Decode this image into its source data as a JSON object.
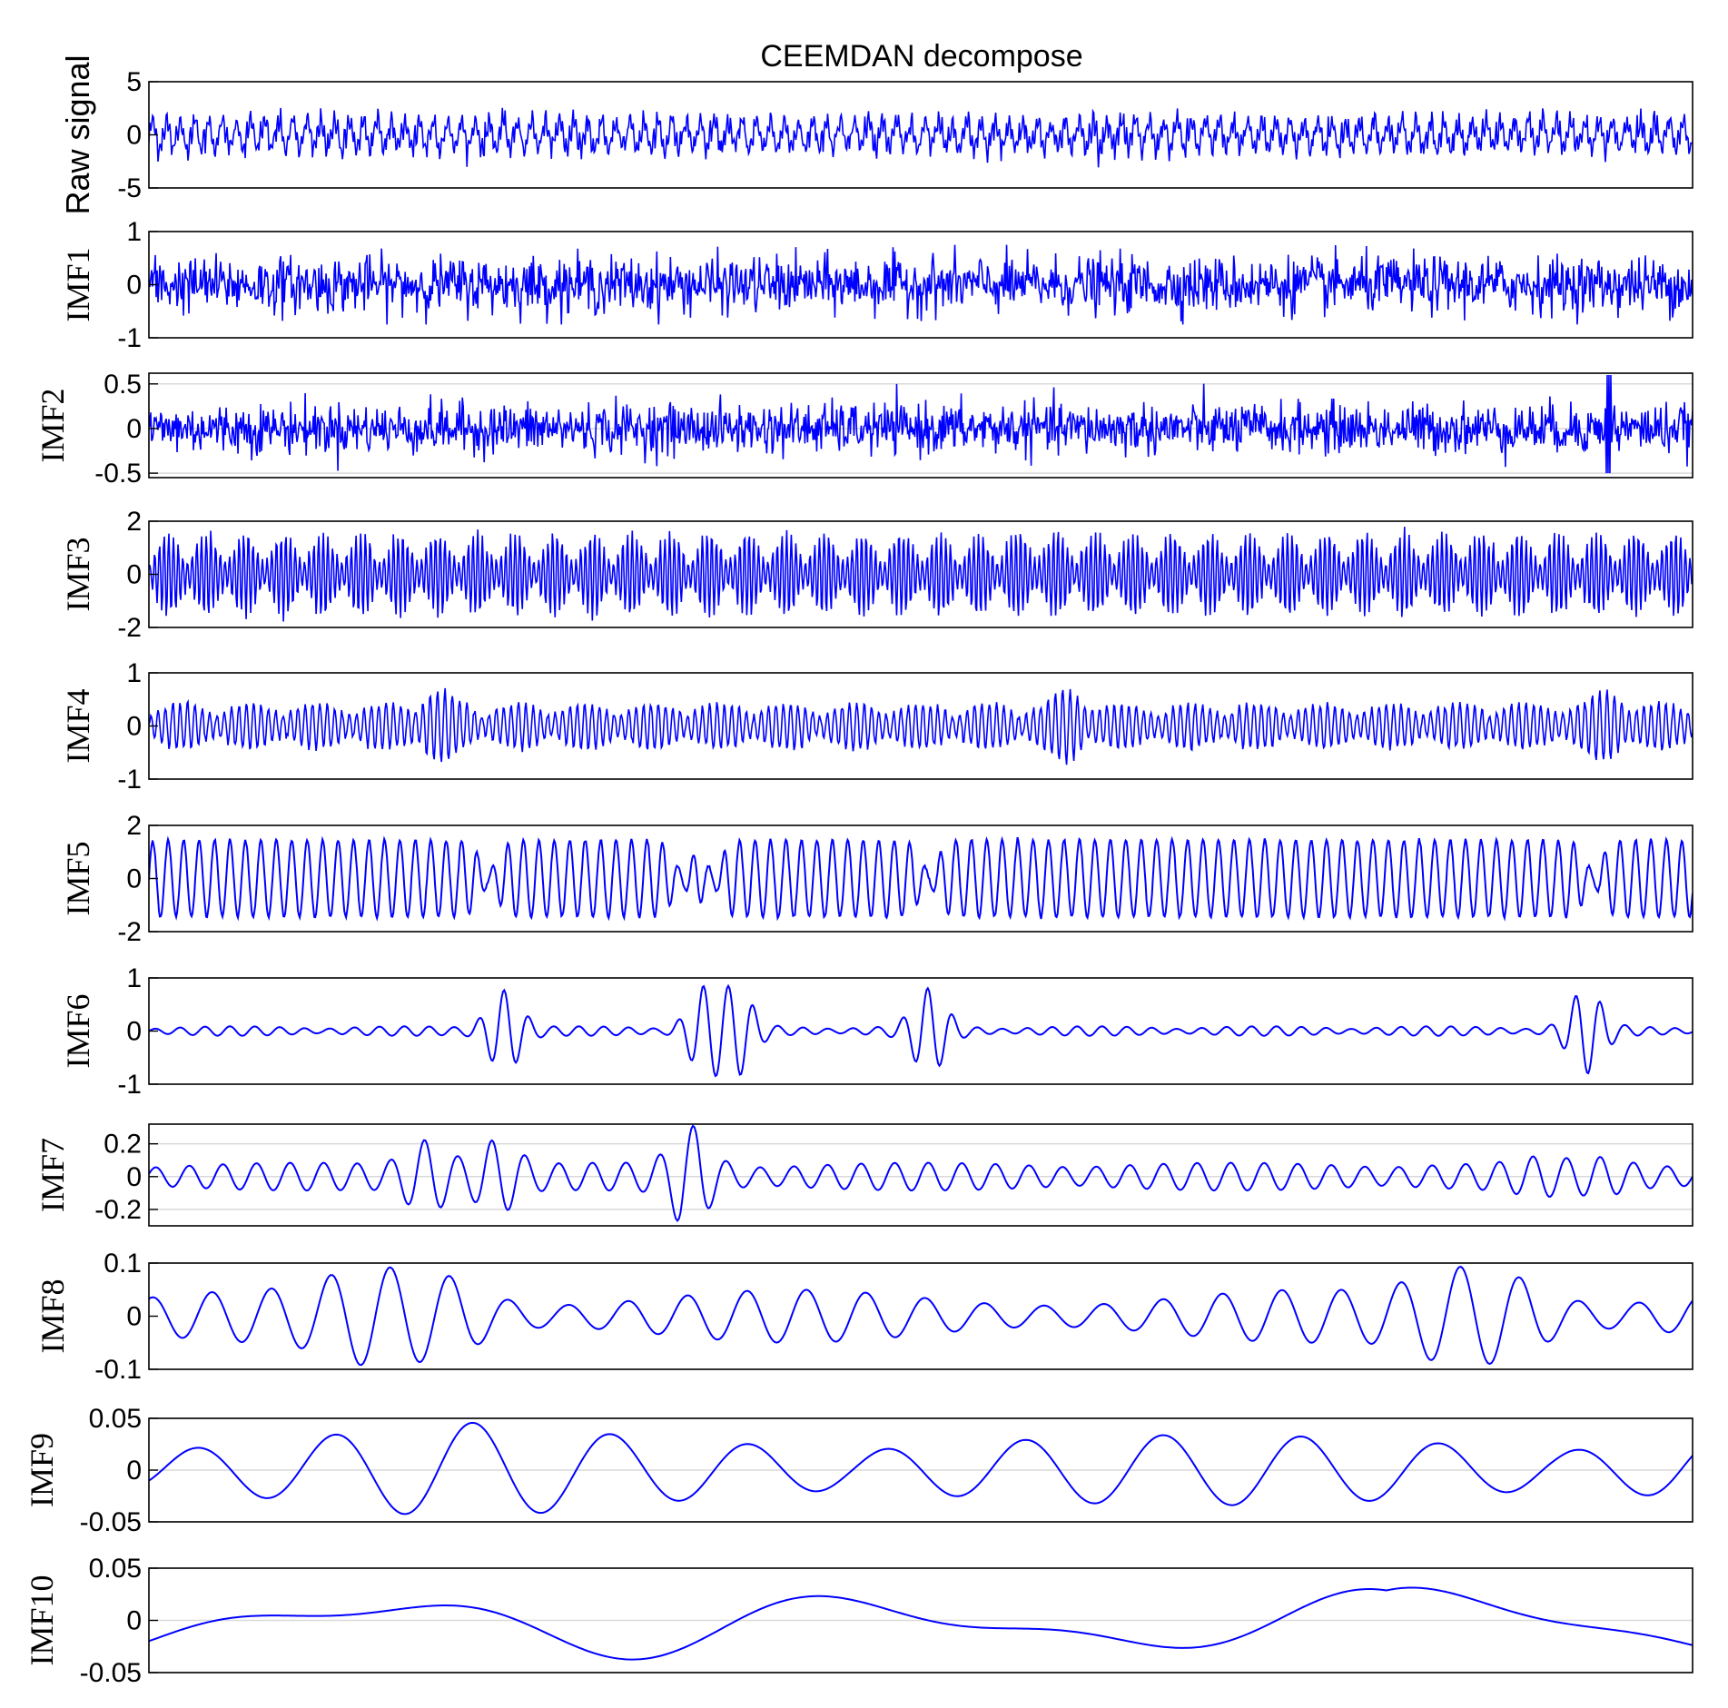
{
  "figure": {
    "title": "CEEMDAN decompose",
    "line_color": "#0000ff",
    "grid_color": "#d9d9d9"
  },
  "chart_data": [
    {
      "type": "line",
      "ylabel": "Raw signal",
      "ylim": [
        -5,
        5
      ],
      "yticks": [
        -5,
        0,
        5
      ],
      "ytick_labels": [
        "-5",
        "0",
        "5"
      ],
      "grid": false,
      "series": [
        {
          "values": "dense oscillating signal ~ ±2.8, ≈110 cycles with high-frequency noise"
        }
      ]
    },
    {
      "type": "line",
      "ylabel": "IMF1",
      "ylim": [
        -1,
        1
      ],
      "yticks": [
        -1,
        0,
        1
      ],
      "ytick_labels": [
        "-1",
        "0",
        "1"
      ],
      "grid": false,
      "series": [
        {
          "values": "high-frequency noise ~ ±0.6"
        }
      ]
    },
    {
      "type": "line",
      "ylabel": "IMF2",
      "ylim": [
        -0.55,
        0.62
      ],
      "yticks": [
        -0.5,
        0,
        0.5
      ],
      "ytick_labels": [
        "-0.5",
        "0",
        "0.5"
      ],
      "grid": true,
      "series": [
        {
          "values": "high-frequency noise ~ ±0.35 with spike near x≈0.945"
        }
      ]
    },
    {
      "type": "line",
      "ylabel": "IMF3",
      "ylim": [
        -2,
        2
      ],
      "yticks": [
        -2,
        0,
        2
      ],
      "ytick_labels": [
        "-2",
        "0",
        "2"
      ],
      "grid": false,
      "series": [
        {
          "values": "amplitude-modulated oscillation ~ ±1.6, ≈40 bursts"
        }
      ]
    },
    {
      "type": "line",
      "ylabel": "IMF4",
      "ylim": [
        -1,
        1
      ],
      "yticks": [
        -1,
        0,
        1
      ],
      "ytick_labels": [
        "-1",
        "0",
        "1"
      ],
      "grid": false,
      "series": [
        {
          "values": "modulated oscillation ~ ±0.5, peaks to ±0.75"
        }
      ]
    },
    {
      "type": "line",
      "ylabel": "IMF5",
      "ylim": [
        -2,
        2
      ],
      "yticks": [
        -2,
        0,
        2
      ],
      "ytick_labels": [
        "-2",
        "0",
        "2"
      ],
      "grid": false,
      "series": [
        {
          "values": "near-periodic oscillation ~ ±1.5, ≈100 cycles"
        }
      ]
    },
    {
      "type": "line",
      "ylabel": "IMF6",
      "ylim": [
        -1,
        1
      ],
      "yticks": [
        -1,
        0,
        1
      ],
      "ytick_labels": [
        "-1",
        "0",
        "1"
      ],
      "grid": false,
      "series": [
        {
          "values": "mostly near 0 with bursts ~ ±0.8 at x≈0.23, 0.38, 0.51, 0.93"
        }
      ]
    },
    {
      "type": "line",
      "ylabel": "IMF7",
      "ylim": [
        -0.3,
        0.32
      ],
      "yticks": [
        -0.2,
        0,
        0.2
      ],
      "ytick_labels": [
        "-0.2",
        "0",
        "0.2"
      ],
      "grid": true,
      "series": [
        {
          "values": "oscillation ~ ±0.07 with bursts to ±0.3 near x≈0.35"
        }
      ]
    },
    {
      "type": "line",
      "ylabel": "IMF8",
      "ylim": [
        -0.1,
        0.1
      ],
      "yticks": [
        -0.1,
        0,
        0.1
      ],
      "ytick_labels": [
        "-0.1",
        "0",
        "0.1"
      ],
      "grid": false,
      "series": [
        {
          "values": "oscillation ~ ±0.05, peaks to ±0.09"
        }
      ]
    },
    {
      "type": "line",
      "ylabel": "IMF9",
      "ylim": [
        -0.05,
        0.05
      ],
      "yticks": [
        -0.05,
        0,
        0.05
      ],
      "ytick_labels": [
        "-0.05",
        "0",
        "0.05"
      ],
      "grid": true,
      "series": [
        {
          "values": "slow oscillation ~ ±0.03"
        }
      ]
    },
    {
      "type": "line",
      "ylabel": "IMF10",
      "ylim": [
        -0.05,
        0.05
      ],
      "yticks": [
        -0.05,
        0,
        0.05
      ],
      "ytick_labels": [
        "-0.05",
        "0",
        "0.05"
      ],
      "grid": true,
      "series": [
        {
          "values": "very slow oscillation ~ ±0.035"
        }
      ]
    }
  ]
}
